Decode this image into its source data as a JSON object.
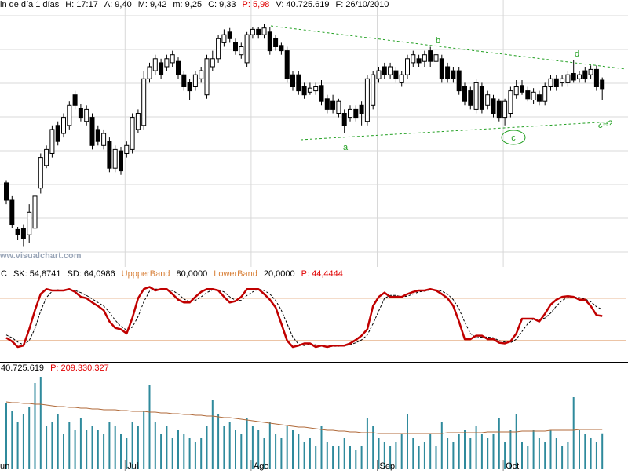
{
  "chart_data": [
    {
      "type": "candlestick",
      "header": [
        {
          "text": "in de día 1 días",
          "color": "#000000"
        },
        {
          "text": "H: 17:17",
          "color": "#000000"
        },
        {
          "text": "A: 9,40",
          "color": "#000000"
        },
        {
          "text": "M: 9,42",
          "color": "#000000"
        },
        {
          "text": "m: 9,25",
          "color": "#000000"
        },
        {
          "text": "C: 9,33",
          "color": "#000000"
        },
        {
          "text": "P: 5,98",
          "color": "#e00000"
        },
        {
          "text": "V: 40.725.619",
          "color": "#000000"
        },
        {
          "text": "F: 26/10/2010",
          "color": "#000000"
        }
      ],
      "watermark": "ww.visualchart.com",
      "annotations": [
        "a",
        "b",
        "c",
        "d",
        "¿e?"
      ],
      "annotation_color": "#22a022",
      "categories": [
        "un",
        null,
        null,
        null,
        null,
        null,
        null,
        null,
        null,
        null,
        null,
        null,
        null,
        null,
        null,
        null,
        null,
        null,
        null,
        null,
        null,
        "Jul",
        null,
        null,
        null,
        null,
        null,
        null,
        null,
        null,
        null,
        null,
        null,
        null,
        null,
        null,
        null,
        null,
        null,
        null,
        null,
        null,
        null,
        "Ago",
        null,
        null,
        null,
        null,
        null,
        null,
        null,
        null,
        null,
        null,
        null,
        null,
        null,
        null,
        null,
        null,
        null,
        null,
        null,
        null,
        null,
        "Sep",
        null,
        null,
        null,
        null,
        null,
        null,
        null,
        null,
        null,
        null,
        null,
        null,
        null,
        null,
        null,
        null,
        null,
        null,
        null,
        null,
        null,
        "Oct",
        null,
        null,
        null,
        null,
        null,
        null,
        null,
        null,
        null,
        null,
        null,
        null,
        null,
        null,
        null,
        null,
        null
      ],
      "open": [
        8.63,
        8.5,
        8.28,
        8.29,
        8.24,
        8.29,
        8.59,
        8.76,
        8.85,
        9.06,
        9.0,
        9.06,
        9.29,
        9.19,
        9.09,
        9.12,
        9.03,
        8.91,
        8.94,
        8.74,
        8.87,
        8.85,
        8.88,
        9.03,
        9.06,
        9.41,
        9.47,
        9.53,
        9.5,
        9.53,
        9.54,
        9.44,
        9.38,
        9.35,
        9.41,
        9.29,
        9.5,
        9.56,
        9.68,
        9.76,
        9.68,
        9.59,
        9.53,
        9.74,
        9.78,
        9.74,
        9.76,
        9.71,
        9.66,
        9.62,
        9.44,
        9.44,
        9.35,
        9.31,
        9.32,
        9.36,
        9.26,
        9.24,
        9.15,
        9.15,
        9.12,
        9.18,
        9.21,
        9.09,
        9.21,
        9.41,
        9.5,
        9.44,
        9.47,
        9.38,
        9.44,
        9.53,
        9.56,
        9.54,
        9.62,
        9.54,
        9.56,
        9.5,
        9.47,
        9.47,
        9.35,
        9.32,
        9.18,
        9.35,
        9.21,
        9.26,
        9.24,
        9.12,
        9.15,
        9.29,
        9.36,
        9.32,
        9.25,
        9.29,
        9.24,
        9.35,
        9.41,
        9.38,
        9.38,
        9.45,
        9.41,
        9.47,
        9.44,
        9.48,
        9.4
      ],
      "high": [
        8.65,
        8.53,
        8.3,
        8.32,
        8.47,
        8.56,
        8.85,
        8.91,
        9.06,
        9.09,
        9.15,
        9.24,
        9.32,
        9.22,
        9.21,
        9.15,
        9.06,
        9.03,
        8.97,
        8.91,
        8.9,
        8.94,
        9.15,
        9.18,
        9.47,
        9.53,
        9.59,
        9.56,
        9.59,
        9.62,
        9.57,
        9.47,
        9.41,
        9.47,
        9.5,
        9.59,
        9.62,
        9.74,
        9.78,
        9.79,
        9.71,
        9.68,
        9.76,
        9.8,
        9.8,
        9.82,
        9.8,
        9.74,
        9.68,
        9.65,
        9.47,
        9.47,
        9.38,
        9.38,
        9.38,
        9.4,
        9.29,
        9.29,
        9.26,
        9.18,
        9.21,
        9.21,
        9.24,
        9.44,
        9.47,
        9.5,
        9.53,
        9.53,
        9.5,
        9.47,
        9.59,
        9.62,
        9.59,
        9.62,
        9.65,
        9.62,
        9.59,
        9.53,
        9.5,
        9.5,
        9.38,
        9.35,
        9.41,
        9.38,
        9.32,
        9.29,
        9.26,
        9.26,
        9.35,
        9.4,
        9.4,
        9.35,
        9.34,
        9.32,
        9.38,
        9.44,
        9.44,
        9.44,
        9.47,
        9.55,
        9.47,
        9.5,
        9.51,
        9.51,
        9.42
      ],
      "low": [
        8.47,
        8.29,
        8.2,
        8.15,
        8.18,
        8.26,
        8.55,
        8.74,
        8.82,
        8.91,
        8.97,
        9.03,
        9.18,
        9.09,
        9.06,
        8.88,
        8.91,
        8.88,
        8.71,
        8.71,
        8.69,
        8.82,
        8.85,
        9.0,
        9.03,
        9.38,
        9.44,
        9.41,
        9.47,
        9.5,
        9.41,
        9.32,
        9.25,
        9.32,
        9.38,
        9.26,
        9.47,
        9.53,
        9.65,
        9.68,
        9.59,
        9.56,
        9.5,
        9.71,
        9.71,
        9.71,
        9.59,
        9.62,
        9.59,
        9.38,
        9.32,
        9.29,
        9.26,
        9.29,
        9.29,
        9.21,
        9.15,
        9.15,
        9.12,
        9.0,
        9.09,
        9.09,
        9.06,
        9.06,
        9.18,
        9.38,
        9.41,
        9.41,
        9.38,
        9.35,
        9.41,
        9.5,
        9.5,
        9.5,
        9.5,
        9.5,
        9.38,
        9.38,
        9.38,
        9.29,
        9.21,
        9.18,
        9.15,
        9.15,
        9.18,
        9.12,
        9.09,
        9.06,
        9.12,
        9.26,
        9.29,
        9.24,
        9.22,
        9.21,
        9.21,
        9.32,
        9.32,
        9.35,
        9.35,
        9.38,
        9.38,
        9.38,
        9.41,
        9.32,
        9.25
      ],
      "close": [
        8.5,
        8.32,
        8.24,
        8.21,
        8.41,
        8.53,
        8.82,
        8.88,
        9.03,
        8.94,
        9.12,
        9.21,
        9.21,
        9.12,
        9.18,
        8.91,
        8.94,
        9.0,
        8.74,
        8.88,
        8.72,
        8.91,
        9.12,
        9.15,
        9.41,
        9.5,
        9.56,
        9.44,
        9.56,
        9.59,
        9.44,
        9.35,
        9.32,
        9.44,
        9.47,
        9.56,
        9.56,
        9.71,
        9.74,
        9.71,
        9.62,
        9.65,
        9.74,
        9.78,
        9.74,
        9.79,
        9.62,
        9.65,
        9.62,
        9.41,
        9.35,
        9.32,
        9.29,
        9.34,
        9.35,
        9.24,
        9.18,
        9.18,
        9.24,
        9.06,
        9.18,
        9.12,
        9.15,
        9.41,
        9.44,
        9.47,
        9.44,
        9.5,
        9.41,
        9.44,
        9.56,
        9.59,
        9.53,
        9.59,
        9.54,
        9.59,
        9.41,
        9.41,
        9.41,
        9.32,
        9.24,
        9.21,
        9.38,
        9.18,
        9.29,
        9.15,
        9.12,
        9.24,
        9.32,
        9.35,
        9.31,
        9.26,
        9.31,
        9.24,
        9.35,
        9.41,
        9.35,
        9.41,
        9.44,
        9.4,
        9.44,
        9.41,
        9.48,
        9.35,
        9.33
      ],
      "up_color": "#ffffff",
      "down_color": "#000000",
      "ylim": [
        8.0,
        10.0
      ],
      "grid": true
    },
    {
      "type": "line",
      "header": [
        {
          "text": "C",
          "color": "#000000"
        },
        {
          "text": "SK: 54,8741",
          "color": "#000000"
        },
        {
          "text": "SD: 64,0986",
          "color": "#000000"
        },
        {
          "text": "UppperBand",
          "color": "#d9823b"
        },
        {
          "text": "80,0000",
          "color": "#000000"
        },
        {
          "text": "LowerBand",
          "color": "#d9823b"
        },
        {
          "text": "20,0000",
          "color": "#000000"
        },
        {
          "text": "P: 44,4444",
          "color": "#e00000"
        }
      ],
      "series": [
        {
          "color": "#c00000",
          "dashed": false,
          "values": [
            24,
            19,
            11,
            13,
            36,
            63,
            86,
            93,
            91,
            91,
            91,
            93,
            89,
            82,
            80,
            74,
            69,
            63,
            47,
            38,
            36,
            30,
            52,
            80,
            93,
            96,
            91,
            93,
            93,
            86,
            78,
            74,
            74,
            82,
            89,
            93,
            93,
            91,
            82,
            74,
            76,
            82,
            93,
            93,
            93,
            86,
            78,
            67,
            44,
            20,
            11,
            13,
            16,
            16,
            11,
            13,
            11,
            13,
            13,
            13,
            16,
            21,
            27,
            36,
            69,
            82,
            88,
            82,
            82,
            82,
            86,
            89,
            91,
            91,
            93,
            91,
            86,
            80,
            69,
            47,
            22,
            22,
            27,
            27,
            22,
            22,
            17,
            16,
            19,
            30,
            51,
            51,
            51,
            47,
            58,
            71,
            78,
            82,
            83,
            82,
            78,
            78,
            69,
            56,
            54.8741
          ]
        },
        {
          "color": "#000000",
          "dashed": true,
          "values": [
            28,
            24,
            18,
            14,
            20,
            37,
            62,
            81,
            90,
            92,
            91,
            92,
            91,
            88,
            84,
            79,
            74,
            69,
            60,
            49,
            40,
            35,
            39,
            54,
            75,
            90,
            93,
            93,
            92,
            91,
            86,
            79,
            75,
            77,
            82,
            88,
            92,
            92,
            89,
            82,
            77,
            77,
            84,
            89,
            93,
            91,
            86,
            77,
            63,
            44,
            25,
            15,
            13,
            15,
            14,
            13,
            12,
            12,
            12,
            13,
            14,
            17,
            21,
            28,
            44,
            62,
            80,
            84,
            84,
            82,
            83,
            86,
            89,
            90,
            92,
            92,
            90,
            86,
            78,
            65,
            46,
            30,
            24,
            25,
            25,
            24,
            20,
            18,
            17,
            22,
            33,
            44,
            51,
            50,
            52,
            59,
            69,
            77,
            81,
            82,
            81,
            79,
            75,
            68,
            64.0986
          ]
        }
      ],
      "bands": [
        80,
        20
      ],
      "band_color": "#e0a070",
      "ylim": [
        -9,
        121
      ]
    },
    {
      "type": "bar",
      "header": [
        {
          "text": "40.725.619",
          "color": "#000000"
        },
        {
          "text": "P: 209.330.327",
          "color": "#e00000"
        }
      ],
      "color": "#2f8a9c",
      "values": [
        76500000,
        67500000,
        54000000,
        63000000,
        72000000,
        99000000,
        106200000,
        49500000,
        54000000,
        63000000,
        40500000,
        54000000,
        45000000,
        58500000,
        45000000,
        49500000,
        45000000,
        40500000,
        54000000,
        49500000,
        40500000,
        36000000,
        54000000,
        49500000,
        67500000,
        97200000,
        54000000,
        40500000,
        49500000,
        36000000,
        45000000,
        40500000,
        36000000,
        31500000,
        36000000,
        49500000,
        79200000,
        63000000,
        49500000,
        54000000,
        45000000,
        40500000,
        58500000,
        49500000,
        45000000,
        36000000,
        54000000,
        40500000,
        36000000,
        49500000,
        45000000,
        40500000,
        31500000,
        36000000,
        27000000,
        49500000,
        31500000,
        27000000,
        27000000,
        36000000,
        27000000,
        22500000,
        27000000,
        58500000,
        49500000,
        36000000,
        31500000,
        27000000,
        31500000,
        40500000,
        63000000,
        36000000,
        27000000,
        31500000,
        40500000,
        27000000,
        54000000,
        36000000,
        31500000,
        40500000,
        45000000,
        36000000,
        49500000,
        40500000,
        36000000,
        40500000,
        58500000,
        31500000,
        45000000,
        63000000,
        31500000,
        27000000,
        45000000,
        36000000,
        31500000,
        45000000,
        36000000,
        27000000,
        31500000,
        82800000,
        45000000,
        40500000,
        36000000,
        31500000,
        40725619
      ],
      "average": {
        "color": "#b06a3a",
        "values": [
          77400000,
          76500000,
          76500000,
          75600000,
          75600000,
          74700000,
          74700000,
          73800000,
          72900000,
          72000000,
          72000000,
          71100000,
          71100000,
          70200000,
          70200000,
          69300000,
          69300000,
          68400000,
          68400000,
          68400000,
          67500000,
          67500000,
          66600000,
          66600000,
          66600000,
          65700000,
          65700000,
          64800000,
          64800000,
          63900000,
          63900000,
          63000000,
          63000000,
          62100000,
          62100000,
          61200000,
          61200000,
          60300000,
          59400000,
          59400000,
          58500000,
          57600000,
          56700000,
          55800000,
          54900000,
          54000000,
          53100000,
          52200000,
          51300000,
          50400000,
          49500000,
          48600000,
          48600000,
          47700000,
          46800000,
          45900000,
          45000000,
          45000000,
          44100000,
          44100000,
          43200000,
          43200000,
          42300000,
          42300000,
          42300000,
          41400000,
          41400000,
          41400000,
          41400000,
          41400000,
          41400000,
          41400000,
          41400000,
          41400000,
          41400000,
          41400000,
          41400000,
          42300000,
          42300000,
          42300000,
          42300000,
          42300000,
          42300000,
          42300000,
          43200000,
          43200000,
          43200000,
          43200000,
          43200000,
          43200000,
          44100000,
          44100000,
          44100000,
          44100000,
          44100000,
          45000000,
          45000000,
          45000000,
          45000000,
          45000000,
          45900000,
          45900000,
          45900000,
          45900000,
          45900000
        ]
      },
      "ylim": [
        0,
        121500000
      ]
    }
  ]
}
